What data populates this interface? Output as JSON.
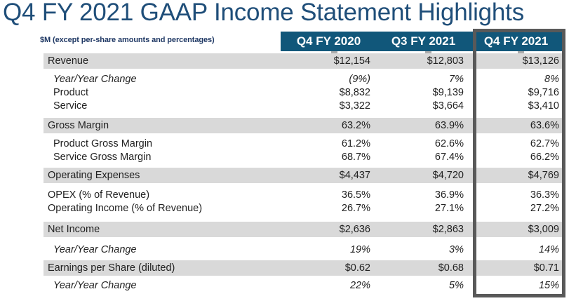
{
  "title": "Q4 FY 2021 GAAP Income Statement Highlights",
  "units_note": "$M (except per-share amounts and percentages)",
  "colors": {
    "title_text": "#1F4E79",
    "header_background": "#11577A",
    "header_text": "#FFFFFF",
    "shaded_row_background": "#D9D9D9",
    "highlight_border": "#595959",
    "body_text": "#212121",
    "note_text": "#1F3864"
  },
  "table": {
    "columns": [
      "Q4 FY 2020",
      "Q3 FY 2021",
      "Q4 FY 2021"
    ],
    "highlighted_column": "Q4 FY 2021",
    "rows": [
      {
        "label": "Revenue",
        "style": "shaded",
        "values": [
          "$12,154",
          "$12,803",
          "$13,126"
        ]
      },
      {
        "label": "Year/Year Change",
        "style": "italic",
        "values": [
          "(9%)",
          "7%",
          "8%"
        ]
      },
      {
        "label": "Product",
        "style": "indent",
        "values": [
          "$8,832",
          "$9,139",
          "$9,716"
        ]
      },
      {
        "label": "Service",
        "style": "indent",
        "values": [
          "$3,322",
          "$3,664",
          "$3,410"
        ]
      },
      {
        "label": "Gross Margin",
        "style": "shaded",
        "values": [
          "63.2%",
          "63.9%",
          "63.6%"
        ]
      },
      {
        "label": "Product Gross Margin",
        "style": "indent",
        "values": [
          "61.2%",
          "62.6%",
          "62.7%"
        ]
      },
      {
        "label": "Service Gross Margin",
        "style": "indent",
        "values": [
          "68.7%",
          "67.4%",
          "66.2%"
        ]
      },
      {
        "label": "Operating Expenses",
        "style": "shaded",
        "values": [
          "$4,437",
          "$4,720",
          "$4,769"
        ]
      },
      {
        "label": "OPEX (% of Revenue)",
        "style": "plain",
        "values": [
          "36.5%",
          "36.9%",
          "36.3%"
        ]
      },
      {
        "label": "Operating Income (% of Revenue)",
        "style": "plain",
        "values": [
          "26.7%",
          "27.1%",
          "27.2%"
        ]
      },
      {
        "label": "Net Income",
        "style": "shaded",
        "values": [
          "$2,636",
          "$2,863",
          "$3,009"
        ]
      },
      {
        "label": "Year/Year Change",
        "style": "italic",
        "values": [
          "19%",
          "3%",
          "14%"
        ]
      },
      {
        "label": "Earnings per Share (diluted)",
        "style": "shaded",
        "values": [
          "$0.62",
          "$0.68",
          "$0.71"
        ]
      },
      {
        "label": "Year/Year Change",
        "style": "italic",
        "values": [
          "22%",
          "5%",
          "15%"
        ]
      }
    ]
  }
}
